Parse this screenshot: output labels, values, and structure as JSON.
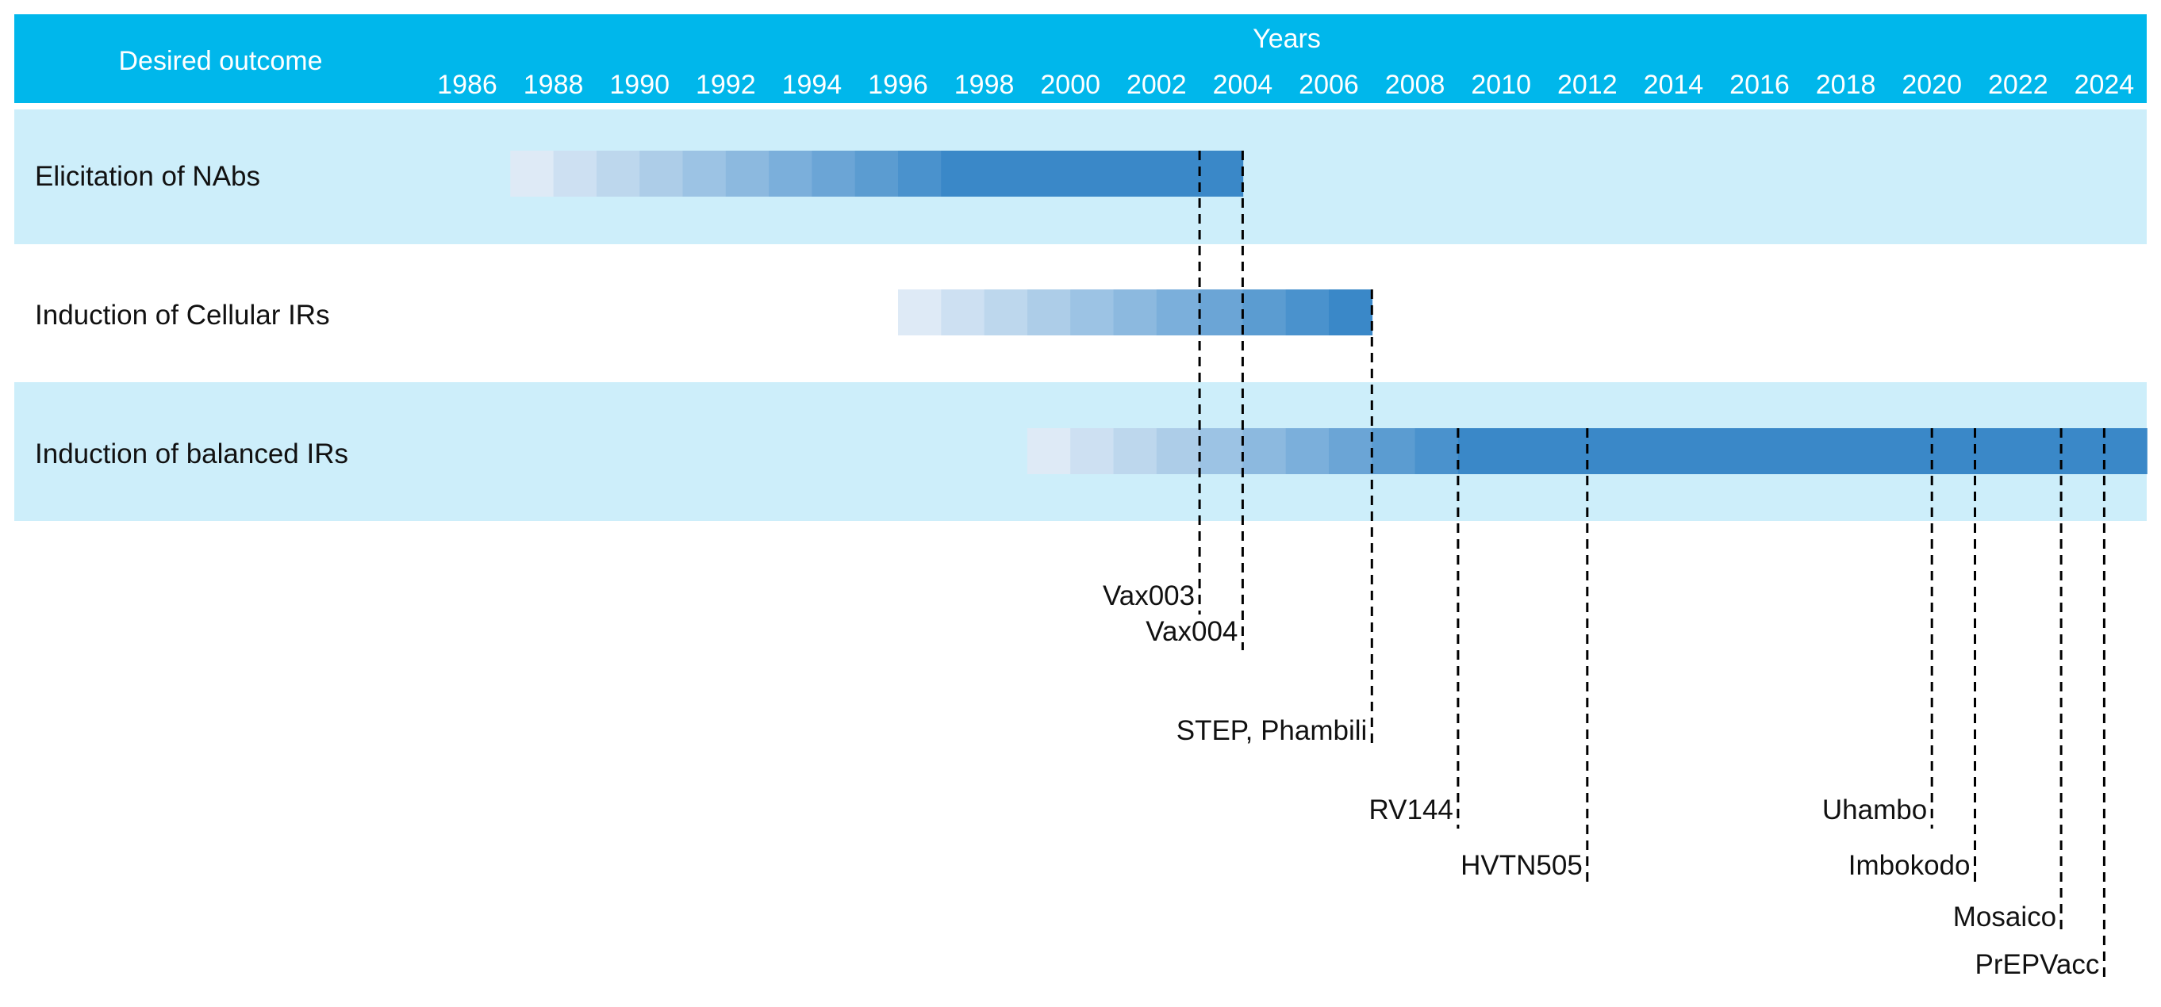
{
  "header": {
    "desired_outcome_label": "Desired outcome",
    "years_label": "Years",
    "year_ticks": [
      "1986",
      "1988",
      "1990",
      "1992",
      "1994",
      "1996",
      "1998",
      "2000",
      "2002",
      "2004",
      "2006",
      "2008",
      "2010",
      "2012",
      "2014",
      "2016",
      "2018",
      "2020",
      "2022",
      "2024"
    ]
  },
  "rows": [
    {
      "label": "Elicitation of NAbs",
      "start_year": 1987,
      "end_year": 2004
    },
    {
      "label": "Induction of Cellular IRs",
      "start_year": 1996,
      "end_year": 2007
    },
    {
      "label": "Induction of balanced IRs",
      "start_year": 1999,
      "end_year": 2025
    }
  ],
  "trials": [
    {
      "name": "Vax003",
      "year": 2003
    },
    {
      "name": "Vax004",
      "year": 2004
    },
    {
      "name": "STEP, Phambili",
      "year": 2007
    },
    {
      "name": "RV144",
      "year": 2009
    },
    {
      "name": "HVTN505",
      "year": 2012
    },
    {
      "name": "Uhambo",
      "year": 2020
    },
    {
      "name": "Imbokodo",
      "year": 2021
    },
    {
      "name": "Mosaico",
      "year": 2023
    },
    {
      "name": "PrEPVacc",
      "year": 2024
    }
  ],
  "colors": {
    "header_bg": "#00B7EB",
    "band_light": "#CDEEFA",
    "band_white": "#FFFFFF",
    "bar_dark": "#3A88C8",
    "bar_light": "#EEF4FB"
  }
}
